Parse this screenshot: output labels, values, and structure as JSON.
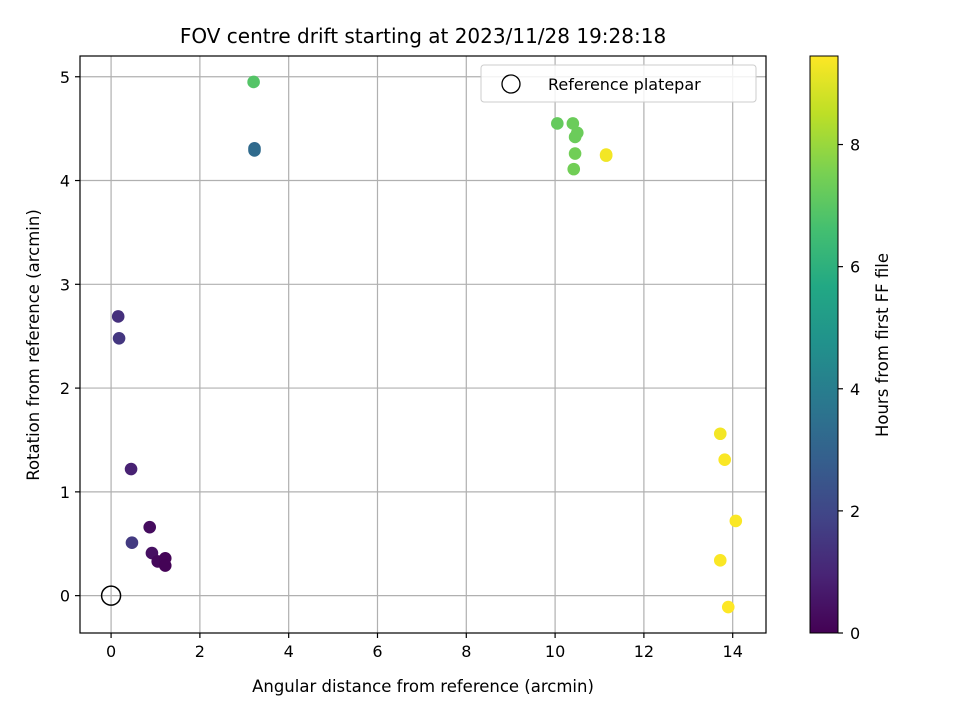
{
  "chart_data": {
    "type": "scatter",
    "title": "FOV centre drift starting at 2023/11/28 19:28:18",
    "xlabel": "Angular distance from reference (arcmin)",
    "ylabel": "Rotation from reference (arcmin)",
    "xlim": [
      -0.7,
      14.75
    ],
    "ylim": [
      -0.36,
      5.2
    ],
    "xticks": [
      0,
      2,
      4,
      6,
      8,
      10,
      12,
      14
    ],
    "yticks": [
      0,
      1,
      2,
      3,
      4,
      5
    ],
    "xtick_labels": [
      "0",
      "2",
      "4",
      "6",
      "8",
      "10",
      "12",
      "14"
    ],
    "ytick_labels": [
      "0",
      "1",
      "2",
      "3",
      "4",
      "5"
    ],
    "grid": true,
    "legend": {
      "placement": "top-right",
      "entries": [
        "Reference platepar"
      ]
    },
    "colorbar": {
      "label": "Hours from first FF file",
      "range": [
        0,
        9.45
      ],
      "ticks": [
        0,
        2,
        4,
        6,
        8
      ],
      "tick_labels": [
        "0",
        "2",
        "4",
        "6",
        "8"
      ],
      "colormap": "viridis"
    },
    "reference_point": {
      "x": 0,
      "y": 0,
      "name": "Reference platepar"
    },
    "points": [
      {
        "x": 0.87,
        "y": 0.66,
        "c": 0.3
      },
      {
        "x": 0.92,
        "y": 0.41,
        "c": 0.4
      },
      {
        "x": 1.05,
        "y": 0.33,
        "c": 0.2
      },
      {
        "x": 1.22,
        "y": 0.36,
        "c": 0.1
      },
      {
        "x": 1.22,
        "y": 0.29,
        "c": 0.05
      },
      {
        "x": 0.45,
        "y": 1.22,
        "c": 0.9
      },
      {
        "x": 0.47,
        "y": 0.51,
        "c": 1.6
      },
      {
        "x": 0.16,
        "y": 2.69,
        "c": 1.3
      },
      {
        "x": 0.18,
        "y": 2.48,
        "c": 1.5
      },
      {
        "x": 3.23,
        "y": 4.31,
        "c": 3.2
      },
      {
        "x": 3.23,
        "y": 4.29,
        "c": 3.3
      },
      {
        "x": 3.21,
        "y": 4.95,
        "c": 6.9
      },
      {
        "x": 10.05,
        "y": 4.55,
        "c": 7.2
      },
      {
        "x": 10.4,
        "y": 4.55,
        "c": 7.3
      },
      {
        "x": 10.45,
        "y": 4.42,
        "c": 7.3
      },
      {
        "x": 10.5,
        "y": 4.46,
        "c": 7.3
      },
      {
        "x": 10.45,
        "y": 4.26,
        "c": 7.4
      },
      {
        "x": 10.42,
        "y": 4.11,
        "c": 7.4
      },
      {
        "x": 11.15,
        "y": 4.24,
        "c": 9.2
      },
      {
        "x": 11.15,
        "y": 4.25,
        "c": 9.3
      },
      {
        "x": 13.72,
        "y": 1.56,
        "c": 9.3
      },
      {
        "x": 13.82,
        "y": 1.31,
        "c": 9.4
      },
      {
        "x": 14.07,
        "y": 0.72,
        "c": 9.4
      },
      {
        "x": 13.72,
        "y": 0.34,
        "c": 9.4
      },
      {
        "x": 13.9,
        "y": -0.11,
        "c": 9.45
      }
    ]
  }
}
